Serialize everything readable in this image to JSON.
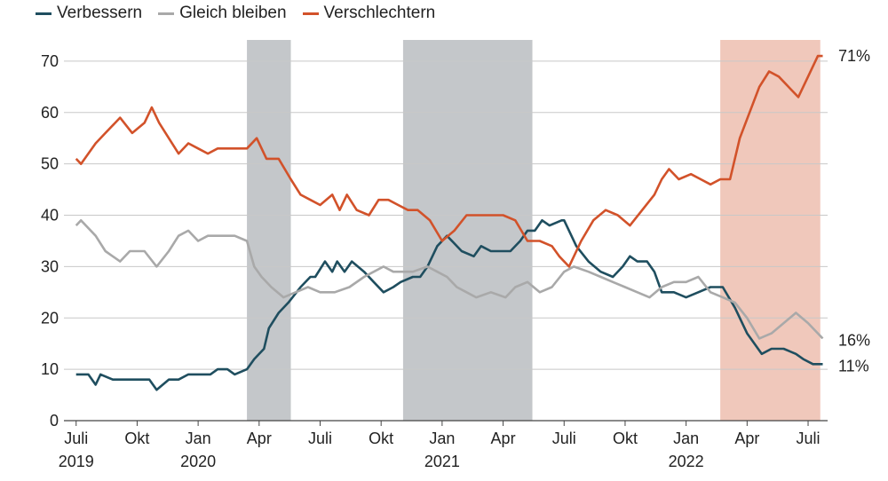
{
  "chart_data": {
    "type": "line",
    "legend": [
      {
        "name": "Verbessern",
        "color": "#1f4e5f"
      },
      {
        "name": "Gleich bleiben",
        "color": "#a9a9a9"
      },
      {
        "name": "Verschlechtern",
        "color": "#d2522a"
      }
    ],
    "y_ticks": [
      "0",
      "10",
      "20",
      "30",
      "40",
      "50",
      "60",
      "70"
    ],
    "ylim": [
      0,
      75
    ],
    "x_ticks": [
      {
        "label": "Juli",
        "year": "2019",
        "x": 2019.5
      },
      {
        "label": "Okt",
        "year": "",
        "x": 2019.75
      },
      {
        "label": "Jan",
        "year": "2020",
        "x": 2020.0
      },
      {
        "label": "Apr",
        "year": "",
        "x": 2020.25
      },
      {
        "label": "Juli",
        "year": "",
        "x": 2020.5
      },
      {
        "label": "Okt",
        "year": "",
        "x": 2020.75
      },
      {
        "label": "Jan",
        "year": "2021",
        "x": 2021.0
      },
      {
        "label": "Apr",
        "year": "",
        "x": 2021.25
      },
      {
        "label": "Juli",
        "year": "",
        "x": 2021.5
      },
      {
        "label": "Okt",
        "year": "",
        "x": 2021.75
      },
      {
        "label": "Jan",
        "year": "2022",
        "x": 2022.0
      },
      {
        "label": "Apr",
        "year": "",
        "x": 2022.25
      },
      {
        "label": "Juli",
        "year": "",
        "x": 2022.5
      }
    ],
    "xlim": [
      2019.45,
      2022.58
    ],
    "shaded_regions": [
      {
        "from": 2020.2,
        "to": 2020.38,
        "color": "#c4c7ca"
      },
      {
        "from": 2020.84,
        "to": 2021.37,
        "color": "#c4c7ca"
      },
      {
        "from": 2022.14,
        "to": 2022.55,
        "color": "#f0c8bb"
      }
    ],
    "end_labels": [
      {
        "text": "71%",
        "value": 71
      },
      {
        "text": "16%",
        "value": 16
      },
      {
        "text": "11%",
        "value": 11
      }
    ],
    "series": [
      {
        "name": "Verbessern",
        "color": "#1f4e5f",
        "points": [
          [
            2019.5,
            9
          ],
          [
            2019.55,
            9
          ],
          [
            2019.58,
            7
          ],
          [
            2019.6,
            9
          ],
          [
            2019.65,
            8
          ],
          [
            2019.75,
            8
          ],
          [
            2019.8,
            8
          ],
          [
            2019.83,
            6
          ],
          [
            2019.88,
            8
          ],
          [
            2019.92,
            8
          ],
          [
            2019.96,
            9
          ],
          [
            2020.0,
            9
          ],
          [
            2020.05,
            9
          ],
          [
            2020.08,
            10
          ],
          [
            2020.12,
            10
          ],
          [
            2020.15,
            9
          ],
          [
            2020.2,
            10
          ],
          [
            2020.23,
            12
          ],
          [
            2020.27,
            14
          ],
          [
            2020.29,
            18
          ],
          [
            2020.33,
            21
          ],
          [
            2020.37,
            23
          ],
          [
            2020.42,
            26
          ],
          [
            2020.46,
            28
          ],
          [
            2020.48,
            28
          ],
          [
            2020.52,
            31
          ],
          [
            2020.55,
            29
          ],
          [
            2020.57,
            31
          ],
          [
            2020.6,
            29
          ],
          [
            2020.63,
            31
          ],
          [
            2020.68,
            29
          ],
          [
            2020.72,
            27
          ],
          [
            2020.76,
            25
          ],
          [
            2020.8,
            26
          ],
          [
            2020.83,
            27
          ],
          [
            2020.88,
            28
          ],
          [
            2020.91,
            28
          ],
          [
            2020.94,
            30
          ],
          [
            2020.98,
            34
          ],
          [
            2021.02,
            36
          ],
          [
            2021.08,
            33
          ],
          [
            2021.13,
            32
          ],
          [
            2021.16,
            34
          ],
          [
            2021.2,
            33
          ],
          [
            2021.25,
            33
          ],
          [
            2021.28,
            33
          ],
          [
            2021.32,
            35
          ],
          [
            2021.35,
            37
          ],
          [
            2021.38,
            37
          ],
          [
            2021.41,
            39
          ],
          [
            2021.44,
            38
          ],
          [
            2021.49,
            39
          ],
          [
            2021.5,
            39
          ],
          [
            2021.55,
            34
          ],
          [
            2021.6,
            31
          ],
          [
            2021.65,
            29
          ],
          [
            2021.7,
            28
          ],
          [
            2021.74,
            30
          ],
          [
            2021.77,
            32
          ],
          [
            2021.8,
            31
          ],
          [
            2021.84,
            31
          ],
          [
            2021.87,
            29
          ],
          [
            2021.9,
            25
          ],
          [
            2021.95,
            25
          ],
          [
            2022.0,
            24
          ],
          [
            2022.05,
            25
          ],
          [
            2022.1,
            26
          ],
          [
            2022.15,
            26
          ],
          [
            2022.2,
            22
          ],
          [
            2022.25,
            17
          ],
          [
            2022.28,
            15
          ],
          [
            2022.31,
            13
          ],
          [
            2022.35,
            14
          ],
          [
            2022.4,
            14
          ],
          [
            2022.45,
            13
          ],
          [
            2022.48,
            12
          ],
          [
            2022.52,
            11
          ],
          [
            2022.56,
            11
          ]
        ]
      },
      {
        "name": "Gleich bleiben",
        "color": "#a9a9a9",
        "points": [
          [
            2019.5,
            38
          ],
          [
            2019.52,
            39
          ],
          [
            2019.58,
            36
          ],
          [
            2019.62,
            33
          ],
          [
            2019.68,
            31
          ],
          [
            2019.72,
            33
          ],
          [
            2019.78,
            33
          ],
          [
            2019.83,
            30
          ],
          [
            2019.88,
            33
          ],
          [
            2019.92,
            36
          ],
          [
            2019.96,
            37
          ],
          [
            2020.0,
            35
          ],
          [
            2020.04,
            36
          ],
          [
            2020.1,
            36
          ],
          [
            2020.15,
            36
          ],
          [
            2020.2,
            35
          ],
          [
            2020.23,
            30
          ],
          [
            2020.26,
            28
          ],
          [
            2020.3,
            26
          ],
          [
            2020.35,
            24
          ],
          [
            2020.4,
            25
          ],
          [
            2020.45,
            26
          ],
          [
            2020.5,
            25
          ],
          [
            2020.56,
            25
          ],
          [
            2020.62,
            26
          ],
          [
            2020.68,
            28
          ],
          [
            2020.72,
            29
          ],
          [
            2020.76,
            30
          ],
          [
            2020.8,
            29
          ],
          [
            2020.88,
            29
          ],
          [
            2020.94,
            30
          ],
          [
            2020.98,
            29
          ],
          [
            2021.02,
            28
          ],
          [
            2021.06,
            26
          ],
          [
            2021.1,
            25
          ],
          [
            2021.14,
            24
          ],
          [
            2021.2,
            25
          ],
          [
            2021.26,
            24
          ],
          [
            2021.3,
            26
          ],
          [
            2021.35,
            27
          ],
          [
            2021.4,
            25
          ],
          [
            2021.45,
            26
          ],
          [
            2021.5,
            29
          ],
          [
            2021.54,
            30
          ],
          [
            2021.6,
            29
          ],
          [
            2021.65,
            28
          ],
          [
            2021.7,
            27
          ],
          [
            2021.75,
            26
          ],
          [
            2021.8,
            25
          ],
          [
            2021.85,
            24
          ],
          [
            2021.9,
            26
          ],
          [
            2021.95,
            27
          ],
          [
            2022.0,
            27
          ],
          [
            2022.05,
            28
          ],
          [
            2022.1,
            25
          ],
          [
            2022.15,
            24
          ],
          [
            2022.2,
            23
          ],
          [
            2022.25,
            20
          ],
          [
            2022.3,
            16
          ],
          [
            2022.35,
            17
          ],
          [
            2022.4,
            19
          ],
          [
            2022.45,
            21
          ],
          [
            2022.5,
            19
          ],
          [
            2022.56,
            16
          ]
        ]
      },
      {
        "name": "Verschlechtern",
        "color": "#d2522a",
        "points": [
          [
            2019.5,
            51
          ],
          [
            2019.52,
            50
          ],
          [
            2019.58,
            54
          ],
          [
            2019.62,
            56
          ],
          [
            2019.68,
            59
          ],
          [
            2019.73,
            56
          ],
          [
            2019.78,
            58
          ],
          [
            2019.81,
            61
          ],
          [
            2019.84,
            58
          ],
          [
            2019.88,
            55
          ],
          [
            2019.92,
            52
          ],
          [
            2019.96,
            54
          ],
          [
            2020.0,
            53
          ],
          [
            2020.04,
            52
          ],
          [
            2020.08,
            53
          ],
          [
            2020.12,
            53
          ],
          [
            2020.16,
            53
          ],
          [
            2020.2,
            53
          ],
          [
            2020.24,
            55
          ],
          [
            2020.28,
            51
          ],
          [
            2020.33,
            51
          ],
          [
            2020.38,
            47
          ],
          [
            2020.42,
            44
          ],
          [
            2020.46,
            43
          ],
          [
            2020.5,
            42
          ],
          [
            2020.55,
            44
          ],
          [
            2020.58,
            41
          ],
          [
            2020.61,
            44
          ],
          [
            2020.65,
            41
          ],
          [
            2020.7,
            40
          ],
          [
            2020.74,
            43
          ],
          [
            2020.78,
            43
          ],
          [
            2020.82,
            42
          ],
          [
            2020.86,
            41
          ],
          [
            2020.9,
            41
          ],
          [
            2020.95,
            39
          ],
          [
            2021.0,
            35
          ],
          [
            2021.05,
            37
          ],
          [
            2021.1,
            40
          ],
          [
            2021.15,
            40
          ],
          [
            2021.2,
            40
          ],
          [
            2021.25,
            40
          ],
          [
            2021.3,
            39
          ],
          [
            2021.35,
            35
          ],
          [
            2021.4,
            35
          ],
          [
            2021.45,
            34
          ],
          [
            2021.48,
            32
          ],
          [
            2021.52,
            30
          ],
          [
            2021.57,
            35
          ],
          [
            2021.62,
            39
          ],
          [
            2021.67,
            41
          ],
          [
            2021.72,
            40
          ],
          [
            2021.77,
            38
          ],
          [
            2021.82,
            41
          ],
          [
            2021.87,
            44
          ],
          [
            2021.9,
            47
          ],
          [
            2021.93,
            49
          ],
          [
            2021.97,
            47
          ],
          [
            2022.02,
            48
          ],
          [
            2022.06,
            47
          ],
          [
            2022.1,
            46
          ],
          [
            2022.14,
            47
          ],
          [
            2022.18,
            47
          ],
          [
            2022.22,
            55
          ],
          [
            2022.26,
            60
          ],
          [
            2022.3,
            65
          ],
          [
            2022.34,
            68
          ],
          [
            2022.38,
            67
          ],
          [
            2022.42,
            65
          ],
          [
            2022.46,
            63
          ],
          [
            2022.5,
            67
          ],
          [
            2022.54,
            71
          ],
          [
            2022.56,
            71
          ]
        ]
      }
    ]
  }
}
